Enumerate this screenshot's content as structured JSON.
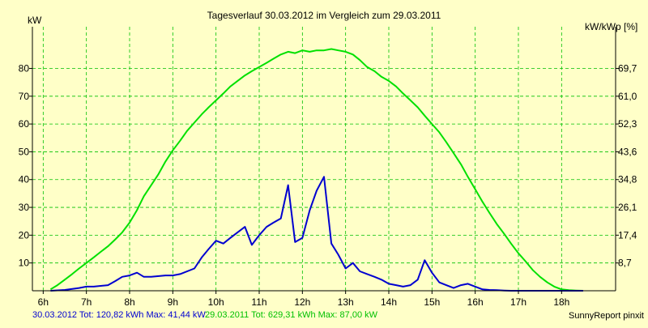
{
  "chart_data": {
    "type": "line",
    "title": "Tagesverlauf 30.03.2012 im Vergleich zum 29.03.2011",
    "ylabel": "kW",
    "ylabel_right": "kW/kWp [%]",
    "xlabel": "",
    "ylim": [
      0,
      95
    ],
    "xlim": [
      5.75,
      19.25
    ],
    "grid": true,
    "x_ticks": [
      "6h",
      "7h",
      "8h",
      "9h",
      "10h",
      "11h",
      "12h",
      "13h",
      "14h",
      "15h",
      "16h",
      "17h",
      "18h"
    ],
    "y_ticks": [
      "10",
      "20",
      "30",
      "40",
      "50",
      "60",
      "70",
      "80"
    ],
    "y_right_ticks": [
      "8,7",
      "17,4",
      "26,1",
      "34,8",
      "43,6",
      "52,3",
      "61,0",
      "69,7"
    ],
    "series": [
      {
        "name": "29.03.2011",
        "color": "#00e000",
        "x": [
          6.17,
          6.33,
          6.5,
          6.67,
          6.83,
          7.0,
          7.17,
          7.33,
          7.5,
          7.67,
          7.83,
          8.0,
          8.17,
          8.33,
          8.5,
          8.67,
          8.83,
          9.0,
          9.17,
          9.33,
          9.5,
          9.67,
          9.83,
          10.0,
          10.17,
          10.33,
          10.5,
          10.67,
          10.83,
          11.0,
          11.17,
          11.33,
          11.5,
          11.67,
          11.83,
          12.0,
          12.17,
          12.33,
          12.5,
          12.67,
          12.83,
          13.0,
          13.17,
          13.33,
          13.5,
          13.67,
          13.83,
          14.0,
          14.17,
          14.33,
          14.5,
          14.67,
          14.83,
          15.0,
          15.17,
          15.33,
          15.5,
          15.67,
          15.83,
          16.0,
          16.17,
          16.33,
          16.5,
          16.67,
          16.83,
          17.0,
          17.17,
          17.33,
          17.5,
          17.67,
          17.83,
          18.0,
          18.17,
          18.33,
          18.5
        ],
        "values": [
          0.5,
          2,
          4,
          6,
          8,
          10,
          12,
          14,
          16,
          18.5,
          21,
          24.5,
          29,
          34,
          38,
          42,
          46.5,
          50.5,
          54,
          57.5,
          60.5,
          63.5,
          66,
          68.5,
          71,
          73.5,
          75.5,
          77.5,
          79,
          80.5,
          82,
          83.5,
          85,
          86,
          85.5,
          86.5,
          86,
          86.5,
          86.5,
          87,
          86.5,
          86,
          85,
          83,
          80.5,
          79,
          77,
          75.5,
          73.5,
          71,
          68.5,
          66,
          63,
          60,
          57,
          53.5,
          49.5,
          45.5,
          41,
          36.5,
          32,
          28,
          24,
          20.5,
          17,
          13.5,
          10.5,
          7.5,
          5,
          3,
          1.5,
          0.5,
          0.2,
          0.1,
          0
        ]
      },
      {
        "name": "30.03.2012",
        "color": "#0000d0",
        "x": [
          6.17,
          6.5,
          6.83,
          7.0,
          7.17,
          7.5,
          7.67,
          7.83,
          8.0,
          8.17,
          8.33,
          8.5,
          8.83,
          9.0,
          9.17,
          9.5,
          9.67,
          9.83,
          10.0,
          10.17,
          10.33,
          10.5,
          10.67,
          10.83,
          11.0,
          11.17,
          11.33,
          11.5,
          11.67,
          11.83,
          12.0,
          12.17,
          12.33,
          12.5,
          12.67,
          12.83,
          13.0,
          13.17,
          13.33,
          13.5,
          13.67,
          13.83,
          14.0,
          14.17,
          14.33,
          14.5,
          14.67,
          14.83,
          15.0,
          15.17,
          15.33,
          15.5,
          15.67,
          15.83,
          16.0,
          16.17,
          16.33,
          16.5,
          16.67,
          16.83,
          17.0,
          17.17,
          17.5,
          18.0,
          18.5
        ],
        "values": [
          0,
          0.3,
          1,
          1.5,
          1.5,
          2,
          3.5,
          5,
          5.5,
          6.5,
          5,
          5,
          5.5,
          5.5,
          6,
          8,
          12,
          15,
          18,
          17,
          19,
          21,
          23,
          16.5,
          20,
          23,
          24.5,
          26,
          38,
          17.5,
          19,
          29,
          36,
          41,
          17,
          13,
          8,
          10,
          7,
          6,
          5,
          4,
          2.5,
          2,
          1.5,
          2,
          4,
          11,
          6.5,
          3,
          2,
          1,
          2,
          2.5,
          1.5,
          0.5,
          0.3,
          0.2,
          0.1,
          0,
          0,
          0,
          0,
          0,
          0
        ]
      }
    ]
  },
  "footer": {
    "blue_text": "30.03.2012 Tot: 120,82 kWh Max: 41,44 kW",
    "green_text": "29.03.2011 Tot: 629,31 kWh Max: 87,00 kW",
    "credit": "SunnyReport pinxit"
  }
}
